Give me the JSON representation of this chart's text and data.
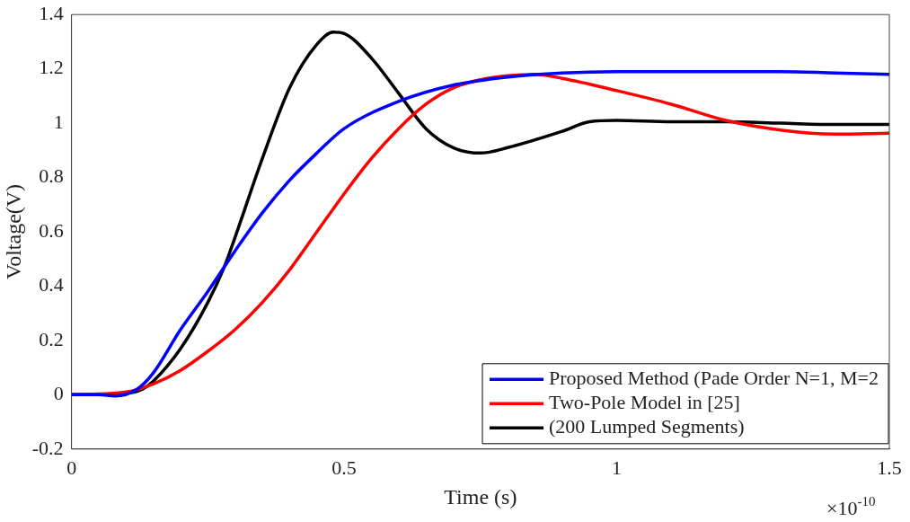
{
  "chart_data": {
    "type": "line",
    "xlabel": "Time (s)",
    "ylabel": "Voltage(V)",
    "xlim": [
      0,
      1.5
    ],
    "xticks": [
      0,
      0.5,
      1,
      1.5
    ],
    "ylim": [
      -0.2,
      1.4
    ],
    "yticks": [
      -0.2,
      0,
      0.2,
      0.4,
      0.6,
      0.8,
      1,
      1.2,
      1.4
    ],
    "grid": false,
    "legend": "bottom right",
    "marker": "none",
    "line_style": "solid",
    "annotations": [
      "×10$^{-10}$"
    ],
    "series": [
      {
        "name": "Proposed Method (Pade Order N=1, M=2",
        "color": "#0000ff",
        "x": [
          0,
          0.05,
          0.08,
          0.12,
          0.15,
          0.2,
          0.25,
          0.3,
          0.35,
          0.4,
          0.45,
          0.5,
          0.6,
          0.7,
          0.8,
          0.9,
          1.0,
          1.1,
          1.2,
          1.3,
          1.4,
          1.5
        ],
        "values": [
          0,
          0,
          -0.005,
          0.02,
          0.08,
          0.24,
          0.38,
          0.53,
          0.67,
          0.79,
          0.89,
          0.98,
          1.08,
          1.14,
          1.17,
          1.185,
          1.19,
          1.19,
          1.19,
          1.19,
          1.185,
          1.18
        ]
      },
      {
        "name": "Two-Pole Model in [25]",
        "color": "#ff0000",
        "x": [
          0,
          0.1,
          0.15,
          0.2,
          0.25,
          0.3,
          0.35,
          0.4,
          0.45,
          0.5,
          0.55,
          0.6,
          0.65,
          0.7,
          0.75,
          0.8,
          0.85,
          0.9,
          1.0,
          1.1,
          1.2,
          1.3,
          1.4,
          1.5
        ],
        "values": [
          0,
          0.01,
          0.04,
          0.09,
          0.16,
          0.24,
          0.34,
          0.46,
          0.6,
          0.74,
          0.87,
          0.98,
          1.07,
          1.13,
          1.16,
          1.175,
          1.18,
          1.165,
          1.12,
          1.07,
          1.01,
          0.975,
          0.96,
          0.963
        ]
      },
      {
        "name": "(200 Lumped Segments)",
        "color": "#000000",
        "x": [
          0,
          0.1,
          0.13,
          0.15,
          0.2,
          0.25,
          0.28,
          0.3,
          0.35,
          0.4,
          0.45,
          0.48,
          0.5,
          0.55,
          0.6,
          0.65,
          0.7,
          0.75,
          0.8,
          0.9,
          0.95,
          1.0,
          1.1,
          1.2,
          1.3,
          1.4,
          1.5
        ],
        "values": [
          0,
          0.005,
          0.02,
          0.05,
          0.17,
          0.34,
          0.47,
          0.58,
          0.87,
          1.13,
          1.29,
          1.335,
          1.33,
          1.24,
          1.11,
          0.98,
          0.91,
          0.89,
          0.91,
          0.97,
          1.005,
          1.01,
          1.005,
          1.005,
          1.0,
          0.995,
          0.995
        ]
      }
    ]
  }
}
